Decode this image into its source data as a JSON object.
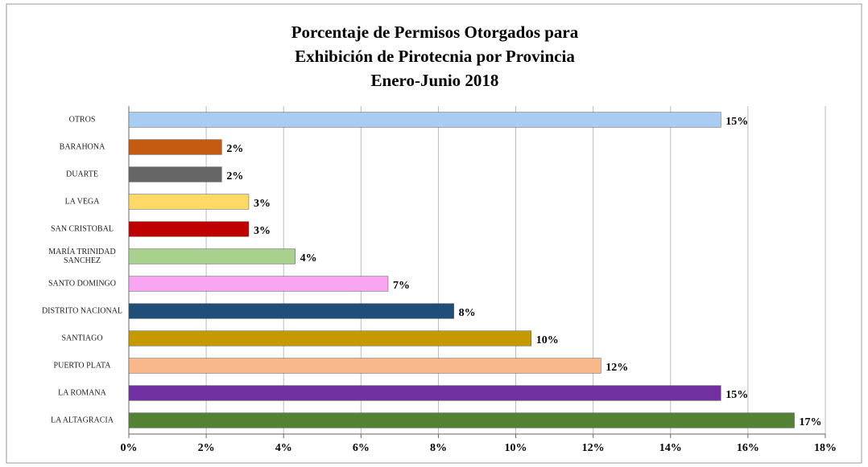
{
  "chart_data": {
    "type": "hbar",
    "title": [
      "Porcentaje de Permisos Otorgados para",
      "Exhibición de Pirotecnia por Provincia",
      "Enero-Junio 2018"
    ],
    "categories": [
      "OTROS",
      "BARAHONA",
      "DUARTE",
      "LA VEGA",
      "SAN CRISTOBAL",
      "MARÍA TRINIDAD SANCHEZ",
      "SANTO DOMINGO",
      "DISTRITO NACIONAL",
      "SANTIAGO",
      "PUERTO PLATA",
      "LA ROMANA",
      "LA ALTAGRACIA"
    ],
    "values": [
      15.3,
      2.4,
      2.4,
      3.1,
      3.1,
      4.3,
      6.7,
      8.4,
      10.4,
      12.2,
      15.3,
      17.2
    ],
    "value_labels": [
      "15%",
      "2%",
      "2%",
      "3%",
      "3%",
      "4%",
      "7%",
      "8%",
      "10%",
      "12%",
      "15%",
      "17%"
    ],
    "colors": [
      "#a9cdf2",
      "#c55a11",
      "#666666",
      "#ffd966",
      "#c00000",
      "#a9d18e",
      "#f9a6f2",
      "#1f4e79",
      "#c59a00",
      "#f8b88b",
      "#7030a0",
      "#548235"
    ],
    "xlim": [
      0,
      18
    ],
    "xticks": [
      {
        "value": 0,
        "label": "0%"
      },
      {
        "value": 2,
        "label": "2%"
      },
      {
        "value": 4,
        "label": "4%"
      },
      {
        "value": 6,
        "label": "6%"
      },
      {
        "value": 8,
        "label": "8%"
      },
      {
        "value": 10,
        "label": "10%"
      },
      {
        "value": 12,
        "label": "12%"
      },
      {
        "value": 14,
        "label": "14%"
      },
      {
        "value": 16,
        "label": "16%"
      },
      {
        "value": 18,
        "label": "18%"
      }
    ],
    "grid": true
  }
}
